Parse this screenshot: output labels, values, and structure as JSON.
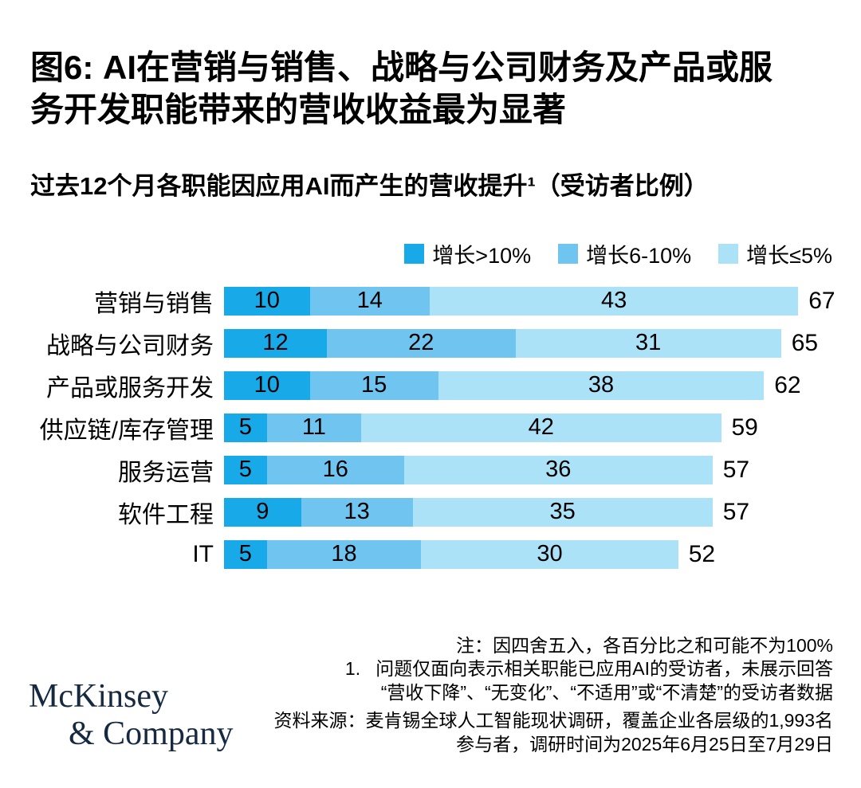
{
  "header": {
    "figure_label": "图6",
    "title_line1": "图6: AI在营销与销售、战略与公司财务及产品或服",
    "title_line2": "务开发职能带来的营收收益最为显著",
    "subtitle": "过去12个月各职能因应用AI而产生的营收提升¹（受访者比例）"
  },
  "chart_data": {
    "type": "bar",
    "orientation": "horizontal",
    "stacked": true,
    "title": "图6: AI在营销与销售、战略与公司财务及产品或服务开发职能带来的营收收益最为显著",
    "subtitle": "过去12个月各职能因应用AI而产生的营收提升¹（受访者比例）",
    "xlabel": "",
    "ylabel": "",
    "xlim": [
      0,
      70
    ],
    "grid": false,
    "legend_position": "top-right",
    "categories": [
      "营销与销售",
      "战略与公司财务",
      "产品或服务开发",
      "供应链/库存管理",
      "服务运营",
      "软件工程",
      "IT"
    ],
    "series": [
      {
        "name": "增长>10%",
        "color": "#18a9e9",
        "values": [
          10,
          12,
          10,
          5,
          5,
          9,
          5
        ]
      },
      {
        "name": "增长6-10%",
        "color": "#6fc5f0",
        "values": [
          14,
          22,
          15,
          11,
          16,
          13,
          18
        ]
      },
      {
        "name": "增长≤5%",
        "color": "#abe2f8",
        "values": [
          43,
          31,
          38,
          42,
          36,
          35,
          30
        ]
      }
    ],
    "totals": [
      67,
      65,
      62,
      59,
      57,
      57,
      52
    ]
  },
  "footer": {
    "note_line1": "注：因四舍五入，各百分比之和可能不为100%",
    "note_line2": "1.   问题仅面向表示相关职能已应用AI的受访者，未展示回答",
    "note_line3": "“营收下降”、“无变化”、“不适用”或“不清楚”的受访者数据",
    "source_line1": "资料来源：麦肯锡全球人工智能现状调研，覆盖企业各层级的1,993名",
    "source_line2": "参与者，调研时间为2025年6月25日至7月29日",
    "logo_line1": "McKinsey",
    "logo_line2": "& Company",
    "logo_color": "#152940"
  }
}
